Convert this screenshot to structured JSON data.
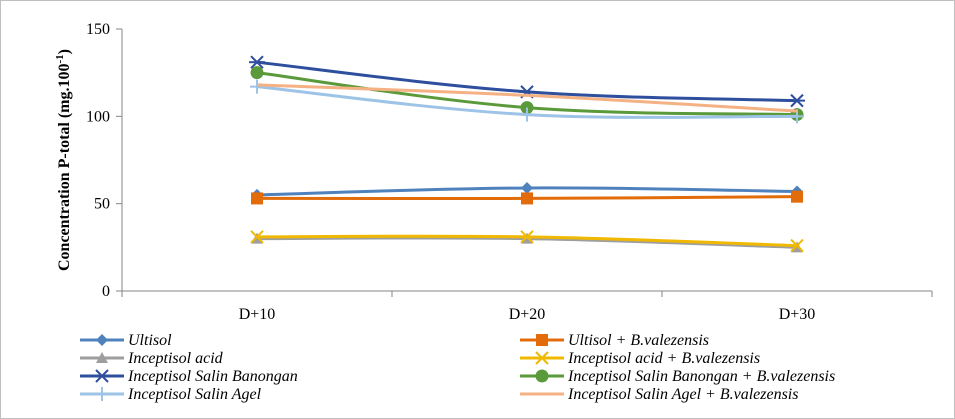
{
  "chart_data": {
    "type": "line",
    "categories": [
      "D+10",
      "D+20",
      "D+30"
    ],
    "ylabel_main": "Concentration  P-total (mg.100",
    "ylabel_sup": "-1",
    "ylabel_close": ")",
    "ylim": [
      0,
      150
    ],
    "yticks": [
      0,
      50,
      100,
      150
    ],
    "grid": false,
    "legend_position": "bottom",
    "series": [
      {
        "name": "Ultisol",
        "name_suffix": "",
        "color": "#4f81bd",
        "marker": "diamond",
        "values": [
          55,
          59,
          57
        ]
      },
      {
        "name": "Ultisol",
        "name_suffix": " + B.valezensis",
        "color": "#e36c0a",
        "marker": "square",
        "values": [
          53,
          53,
          54
        ]
      },
      {
        "name": "Inceptisol acid",
        "name_suffix": "",
        "color": "#9e9e9e",
        "marker": "triangle",
        "values": [
          30,
          30,
          25
        ]
      },
      {
        "name": "Inceptisol acid",
        "name_suffix": " + B.valezensis",
        "color": "#f0b800",
        "marker": "x",
        "values": [
          31,
          31,
          26
        ]
      },
      {
        "name": "Inceptisol Salin Banongan",
        "name_suffix": "",
        "color": "#2e4f9e",
        "marker": "asterisk",
        "values": [
          131,
          114,
          109
        ]
      },
      {
        "name": "Inceptisol Salin Banongan",
        "name_suffix": " + B.valezensis",
        "color": "#5a9a3a",
        "marker": "circle",
        "values": [
          125,
          105,
          101
        ]
      },
      {
        "name": "Inceptisol Salin Agel",
        "name_suffix": "",
        "color": "#9dc3e6",
        "marker": "plus",
        "values": [
          117,
          101,
          100
        ]
      },
      {
        "name": "Inceptisol Salin Agel",
        "name_suffix": " + B.valezensis",
        "color": "#f4b183",
        "marker": "none",
        "values": [
          118,
          112,
          103
        ]
      }
    ]
  }
}
